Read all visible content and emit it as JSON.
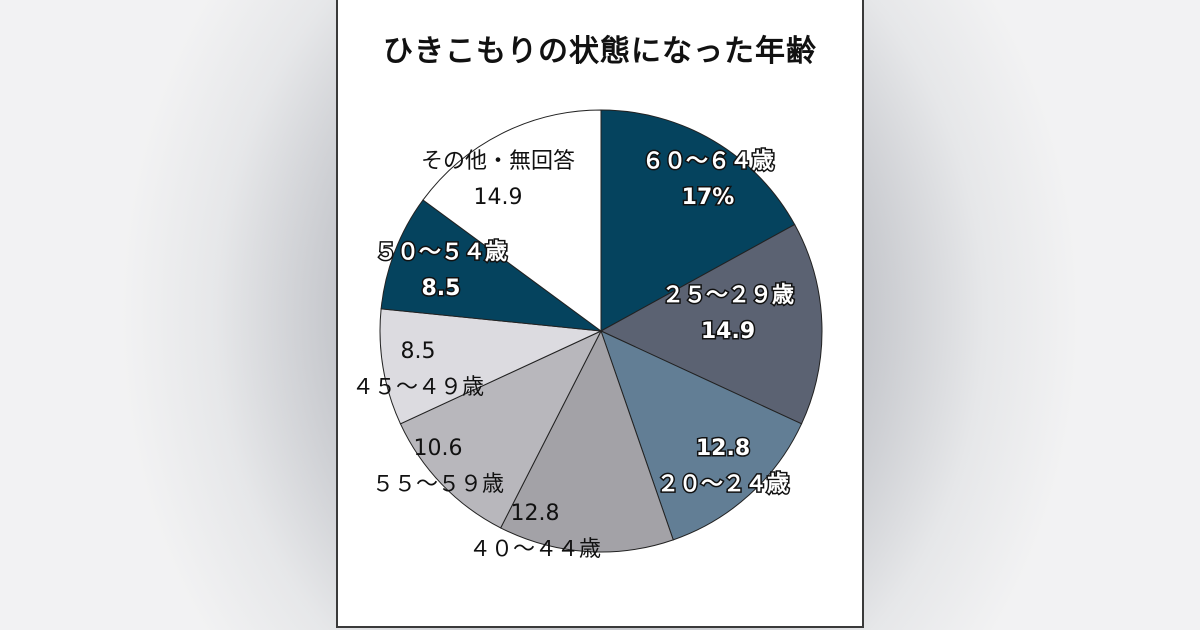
{
  "chart_data": {
    "type": "pie",
    "title": "ひきこもりの状態になった年齢",
    "slices": [
      {
        "label": "６０～６４歳",
        "value": 17,
        "value_text": "17%",
        "color": "#05435e",
        "label_style": "outline",
        "label_first": true
      },
      {
        "label": "２５～２９歳",
        "value": 14.9,
        "value_text": "14.9",
        "color": "#5b6272",
        "label_style": "outline",
        "label_first": true
      },
      {
        "label": "２０～２４歳",
        "value": 12.8,
        "value_text": "12.8",
        "color": "#627e95",
        "label_style": "outline",
        "label_first": false
      },
      {
        "label": "４０～４４歳",
        "value": 12.8,
        "value_text": "12.8",
        "color": "#a3a2a7",
        "label_style": "plain",
        "label_first": false
      },
      {
        "label": "５５～５９歳",
        "value": 10.6,
        "value_text": "10.6",
        "color": "#b8b7bc",
        "label_style": "plain",
        "label_first": false
      },
      {
        "label": "４５～４９歳",
        "value": 8.5,
        "value_text": "8.5",
        "color": "#dcdbe0",
        "label_style": "plain",
        "label_first": false
      },
      {
        "label": "５０～５４歳",
        "value": 8.5,
        "value_text": "8.5",
        "color": "#05435e",
        "label_style": "outline",
        "label_first": true
      },
      {
        "label": "その他・無回答",
        "value": 14.9,
        "value_text": "14.9",
        "color": "#ffffff",
        "label_style": "plain",
        "label_first": true
      }
    ]
  }
}
